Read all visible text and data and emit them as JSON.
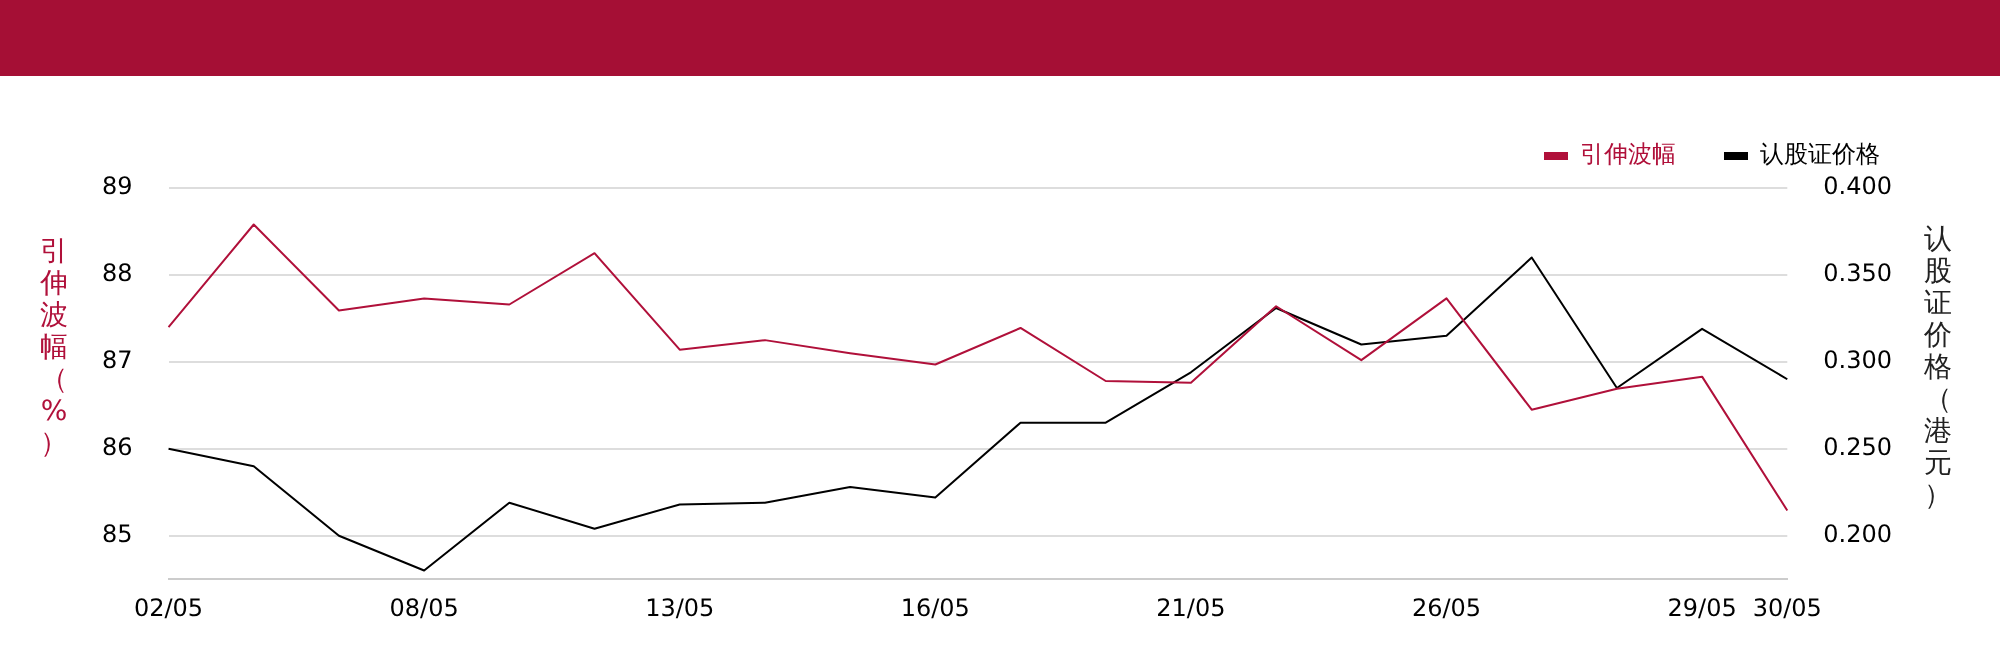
{
  "chart_data": {
    "type": "line",
    "ylabel": "引伸波幅（%）",
    "y2label": "认股证价格（港元）",
    "categories": [
      "02/05",
      null,
      null,
      "08/05",
      null,
      null,
      "13/05",
      null,
      null,
      "16/05",
      null,
      null,
      "21/05",
      null,
      null,
      "26/05",
      null,
      null,
      "29/05",
      "30/05"
    ],
    "series": [
      {
        "name": "引伸波幅",
        "color": "#b0103a",
        "values": [
          87.4,
          88.58,
          87.59,
          87.73,
          87.66,
          88.25,
          87.14,
          87.25,
          87.1,
          86.97,
          87.39,
          86.78,
          86.76,
          87.64,
          87.02,
          87.73,
          86.45,
          86.69,
          86.83,
          85.29
        ]
      },
      {
        "name": "认股证价格",
        "color": "#000000",
        "axis": "y2",
        "values": [
          0.25,
          0.24,
          0.2,
          0.18,
          0.219,
          0.204,
          0.218,
          0.219,
          0.228,
          0.222,
          0.265,
          0.265,
          0.294,
          0.331,
          0.31,
          0.315,
          0.36,
          0.285,
          0.319,
          0.29
        ]
      }
    ],
    "ylim": [
      84.5,
      89
    ],
    "yticks": [
      85,
      86,
      87,
      88,
      89
    ],
    "y2lim": [
      0.175,
      0.4
    ],
    "y2ticks": [
      {
        "value": 0.2,
        "label": "0.200"
      },
      {
        "value": 0.25,
        "label": "0.250"
      },
      {
        "value": 0.3,
        "label": "0.300"
      },
      {
        "value": 0.35,
        "label": "0.350"
      },
      {
        "value": 0.4,
        "label": "0.400"
      }
    ],
    "grid": "y",
    "legend": "top right",
    "marker": "none",
    "line_style": "solid"
  }
}
